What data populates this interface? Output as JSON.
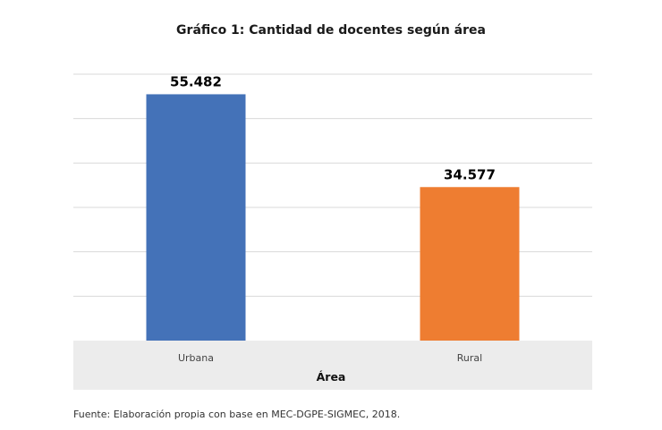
{
  "chart_data": {
    "type": "bar",
    "title": "Gráfico 1: Cantidad de docentes según área",
    "categories": [
      "Urbana",
      "Rural"
    ],
    "values": [
      55482,
      34577
    ],
    "data_labels": [
      "55.482",
      "34.577"
    ],
    "colors": [
      "#4472B8",
      "#EE7D31"
    ],
    "xlabel": "Área",
    "ylabel": "",
    "ylim": [
      0,
      60000
    ],
    "ytick_step": 10000,
    "grid": true,
    "legend": "none"
  },
  "source": "Fuente: Elaboración propia con base en MEC-DGPE-SIGMEC, 2018."
}
